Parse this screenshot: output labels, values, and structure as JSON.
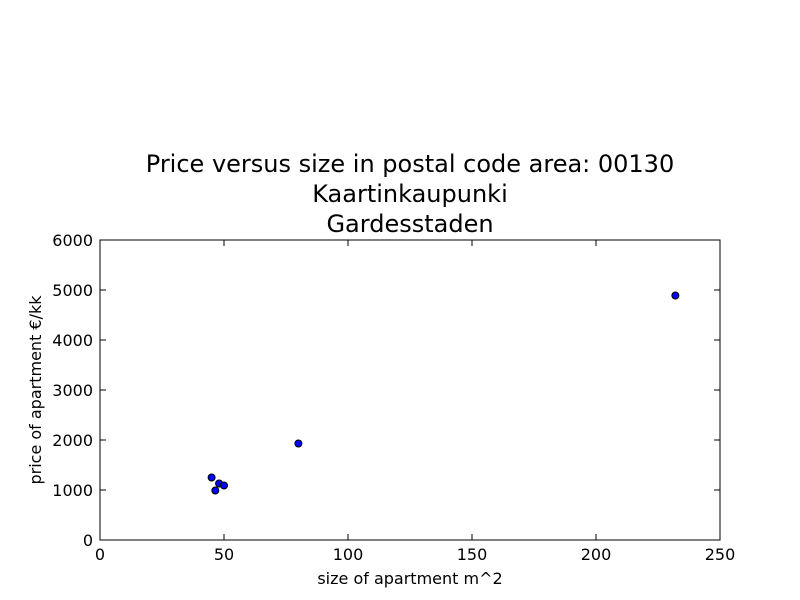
{
  "chart_data": {
    "type": "scatter",
    "title": [
      "Price versus size in postal code area: 00130",
      "Kaartinkaupunki",
      "Gardesstaden"
    ],
    "xlabel": "size of apartment m^2",
    "ylabel": "price of apartment €/kk",
    "xlim": [
      0,
      250
    ],
    "ylim": [
      0,
      6000
    ],
    "xticks": [
      0,
      50,
      100,
      150,
      200,
      250
    ],
    "yticks": [
      0,
      1000,
      2000,
      3000,
      4000,
      5000,
      6000
    ],
    "grid": false,
    "marker_color": "#0000ff",
    "points": [
      {
        "x": 45,
        "y": 1250
      },
      {
        "x": 46.5,
        "y": 990
      },
      {
        "x": 48,
        "y": 1130
      },
      {
        "x": 50,
        "y": 1090
      },
      {
        "x": 80,
        "y": 1930
      },
      {
        "x": 232,
        "y": 4890
      }
    ]
  }
}
